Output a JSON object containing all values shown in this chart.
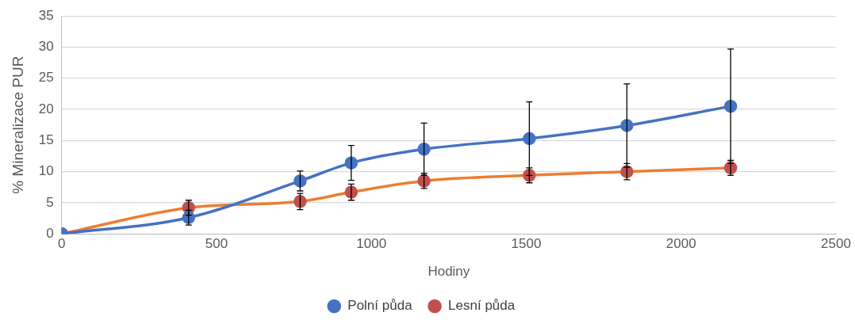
{
  "chart_data": {
    "type": "line",
    "xlabel": "Hodiny",
    "ylabel": "% Mineralizace PUR",
    "x": [
      0,
      410,
      770,
      935,
      1170,
      1510,
      1825,
      2160
    ],
    "xlim": [
      0,
      2500
    ],
    "xticks": [
      0,
      500,
      1000,
      1500,
      2000,
      2500
    ],
    "ylim": [
      0,
      35
    ],
    "yticks": [
      0,
      5,
      10,
      15,
      20,
      25,
      30,
      35
    ],
    "grid": "y",
    "legend": "bottom",
    "marker": "circle",
    "line_style": "solid",
    "series": [
      {
        "name": "Polní půda",
        "color": "#4472c4",
        "values": [
          0,
          2.6,
          8.5,
          11.4,
          13.6,
          15.3,
          17.4,
          20.5
        ],
        "errors": [
          null,
          1.2,
          1.6,
          2.8,
          4.2,
          5.9,
          6.7,
          9.2
        ]
      },
      {
        "name": "Lesní půda",
        "color": "#ed7d31",
        "colors": [
          "#c0504d",
          "#c0504d",
          "#c0504d",
          "#c0504d",
          "#c0504d",
          "#c0504d",
          "#c0504d",
          "#c0504d"
        ],
        "values": [
          0,
          4.2,
          5.2,
          6.7,
          8.5,
          9.4,
          10.0,
          10.6
        ],
        "errors": [
          null,
          1.2,
          1.3,
          1.3,
          1.2,
          1.2,
          1.3,
          1.2
        ]
      }
    ]
  }
}
